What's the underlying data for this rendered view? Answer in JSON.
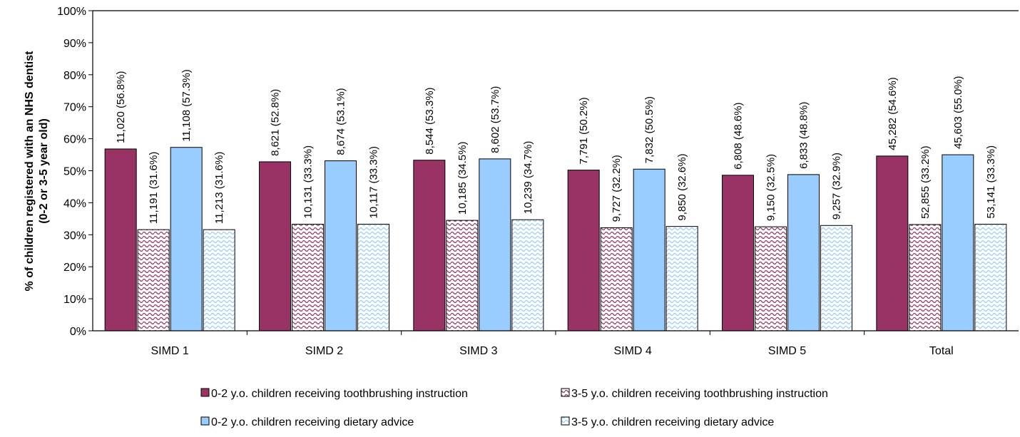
{
  "chart_data": {
    "type": "bar",
    "ylabel_line1": "% of children registered with an NHS dentist",
    "ylabel_line2": "(0-2 or 3-5 year old)",
    "ylim": [
      0,
      100
    ],
    "yticks": [
      "0%",
      "10%",
      "20%",
      "30%",
      "40%",
      "50%",
      "60%",
      "70%",
      "80%",
      "90%",
      "100%"
    ],
    "grid": false,
    "legend_position": "bottom",
    "categories": [
      "SIMD 1",
      "SIMD 2",
      "SIMD 3",
      "SIMD 4",
      "SIMD 5",
      "Total"
    ],
    "series": [
      {
        "name": "0-2 y.o. children receiving toothbrushing instruction",
        "color": "#993366",
        "pattern": "solid",
        "values": [
          56.8,
          52.8,
          53.3,
          50.2,
          48.6,
          54.6
        ],
        "labels": [
          "11,020 (56.8%)",
          "8,621 (52.8%)",
          "8,544 (53.3%)",
          "7,791 (50.2%)",
          "6,808 (48.6%)",
          "45,282 (54.6%)"
        ]
      },
      {
        "name": "3-5 y.o. children receiving toothbrushing instruction",
        "color": "#993366",
        "pattern": "wave",
        "values": [
          31.6,
          33.3,
          34.5,
          32.2,
          32.5,
          33.2
        ],
        "labels": [
          "11,191 (31.6%)",
          "10,131 (33.3%)",
          "10,185 (34.5%)",
          "9,727 (32.2%)",
          "9,150 (32.5%)",
          "52,855 (33.2%)"
        ]
      },
      {
        "name": "0-2 y.o. children receiving dietary advice",
        "color": "#99CCFF",
        "pattern": "solid",
        "values": [
          57.3,
          53.1,
          53.7,
          50.5,
          48.8,
          55.0
        ],
        "labels": [
          "11,108 (57.3%)",
          "8,674 (53.1%)",
          "8,602 (53.7%)",
          "7,832 (50.5%)",
          "6,833 (48.8%)",
          "45,603 (55.0%)"
        ]
      },
      {
        "name": "3-5 y.o. children receiving dietary advice",
        "color": "#99CCFF",
        "pattern": "wave",
        "values": [
          31.6,
          33.3,
          34.7,
          32.6,
          32.9,
          33.3
        ],
        "labels": [
          "11,213 (31.6%)",
          "10,117 (33.3%)",
          "10,239 (34.7%)",
          "9,850 (32.6%)",
          "9,257 (32.9%)",
          "53,141 (33.3%)"
        ]
      }
    ]
  }
}
